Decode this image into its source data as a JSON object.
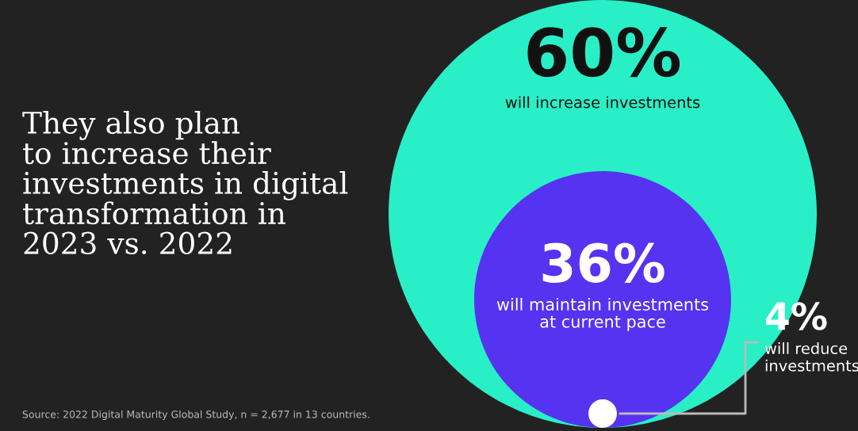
{
  "chart_data": {
    "type": "other",
    "title": "They also plan\nto increase their\ninvestments in digital\ntransformation in\n2023 vs. 2022",
    "categories": [
      "will increase investments",
      "will maintain investments\nat current pace",
      "will reduce\ninvestments"
    ],
    "values": [
      60,
      36,
      4
    ],
    "value_labels": [
      "60%",
      "36%",
      "4%"
    ],
    "colors": [
      "#29efc7",
      "#5533f0",
      "#ffffff"
    ],
    "annotations": [
      "Source: 2022 Digital Maturity Global Study, n = 2,677 in 13 countries."
    ]
  }
}
